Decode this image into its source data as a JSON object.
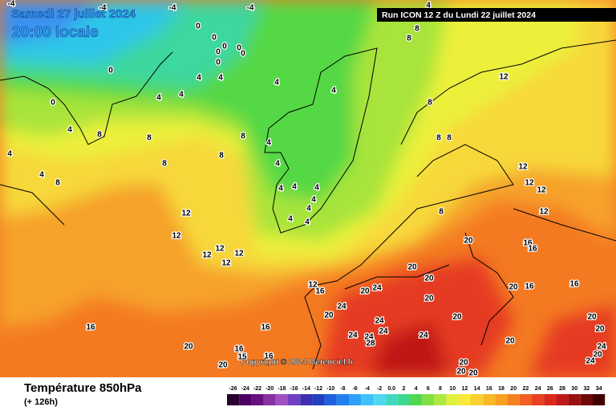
{
  "header": {
    "date": "Samedi 27 juillet 2024",
    "time": "20:00 locale",
    "run": "Run ICON 12 Z du Lundi 22 juillet 2024"
  },
  "copyright": "Copyright © 2024 Meteociel.fr",
  "footer": {
    "title": "Température 850hPa",
    "lead": "(+ 126h)"
  },
  "legend": {
    "labels": [
      "-26",
      "-24",
      "-22",
      "-20",
      "-18",
      "-16",
      "-14",
      "-12",
      "-10",
      "-8",
      "-6",
      "-4",
      "-2",
      "0.0",
      "2",
      "4",
      "6",
      "8",
      "10",
      "12",
      "14",
      "16",
      "18",
      "20",
      "22",
      "24",
      "26",
      "28",
      "30",
      "32",
      "34"
    ]
  },
  "map": {
    "contour_labels": [
      "-4",
      "-4",
      "-4",
      "-4",
      "0",
      "0",
      "0",
      "0",
      "0",
      "0",
      "0",
      "4",
      "4",
      "0",
      "0",
      "4",
      "4",
      "4",
      "4",
      "4",
      "8",
      "8",
      "8",
      "8",
      "12",
      "4",
      "8",
      "8",
      "4",
      "4",
      "8",
      "8",
      "8",
      "8",
      "4",
      "4",
      "4",
      "4",
      "4",
      "4",
      "4",
      "4",
      "4",
      "8",
      "8",
      "8",
      "12",
      "12",
      "12",
      "12",
      "12",
      "12",
      "12",
      "12",
      "12",
      "12",
      "20",
      "16",
      "16",
      "20",
      "20",
      "12",
      "16",
      "20",
      "24",
      "20",
      "16",
      "16",
      "24",
      "20",
      "20",
      "20",
      "24",
      "16",
      "16",
      "24",
      "24",
      "24",
      "24",
      "28",
      "20",
      "20",
      "20",
      "24",
      "20",
      "16",
      "15",
      "16",
      "20",
      "24",
      "20",
      "20",
      "20",
      "20"
    ]
  }
}
